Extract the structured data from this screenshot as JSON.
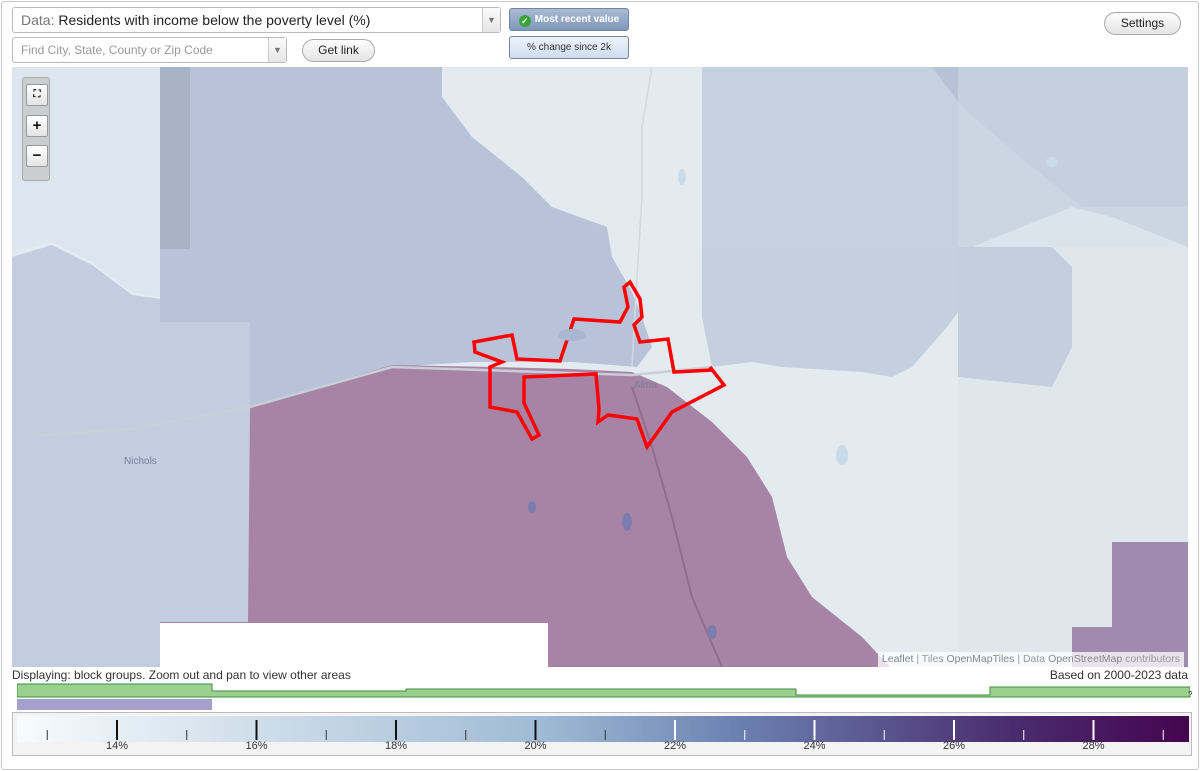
{
  "toolbar": {
    "data_label": "Data:",
    "data_value": "Residents with income below the poverty level (%)",
    "search_placeholder": "Find City, State, County or Zip Code",
    "get_link": "Get link",
    "settings": "Settings",
    "toggle_recent": "Most recent value",
    "toggle_change": "% change since 2k"
  },
  "map": {
    "place_labels": [
      "Alma",
      "Nichols"
    ],
    "zoom_in": "+",
    "zoom_out": "−",
    "attribution": {
      "leaflet": "Leaflet",
      "sep1": " | Tiles ",
      "tiles": "OpenMapTiles",
      "sep2": " | Data ",
      "data": "OpenStreetMap",
      "contributors": " contributors"
    },
    "colors": {
      "low": "#e3ebf0",
      "mid_blue": "#b7c4d9",
      "high_purple": "#a784a6",
      "highlight_outline": "#ff0000"
    }
  },
  "footer": {
    "status": "Displaying: block groups. Zoom out and pan to view other areas",
    "based_on": "Based on 2000-2023 data",
    "help": "?"
  },
  "legend": {
    "ticks": [
      "14%",
      "16%",
      "18%",
      "20%",
      "22%",
      "24%",
      "26%",
      "28%"
    ],
    "gradient": [
      "#f7fbfd",
      "#9fbad4",
      "#6b7fb0",
      "#4a2c6e",
      "#45054f"
    ]
  }
}
